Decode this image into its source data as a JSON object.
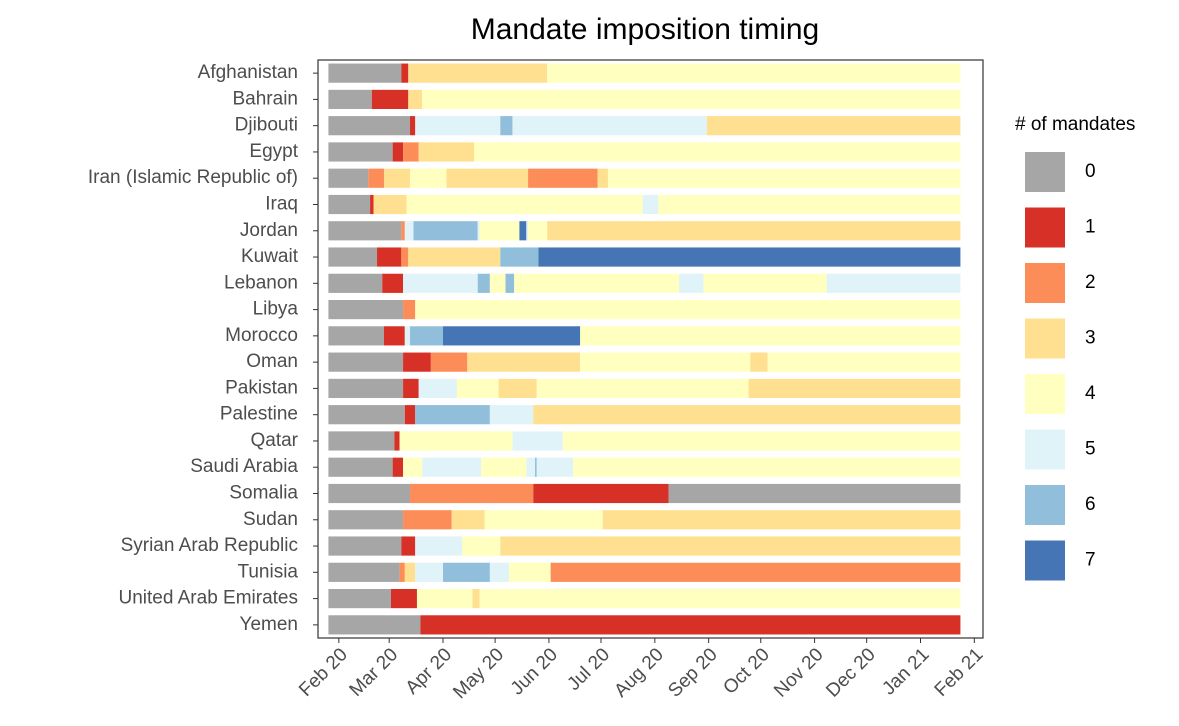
{
  "chart_data": {
    "type": "timeline",
    "title": "Mandate imposition timing",
    "xlim": [
      -12,
      371
    ],
    "xticks": [
      {
        "value": 0,
        "label": "Feb 20"
      },
      {
        "value": 29,
        "label": "Mar 20"
      },
      {
        "value": 60,
        "label": "Apr 20"
      },
      {
        "value": 90,
        "label": "May 20"
      },
      {
        "value": 121,
        "label": "Jun 20"
      },
      {
        "value": 151,
        "label": "Jul 20"
      },
      {
        "value": 182,
        "label": "Aug 20"
      },
      {
        "value": 213,
        "label": "Sep 20"
      },
      {
        "value": 243,
        "label": "Oct 20"
      },
      {
        "value": 274,
        "label": "Nov 20"
      },
      {
        "value": 304,
        "label": "Dec 20"
      },
      {
        "value": 335,
        "label": "Jan 21"
      },
      {
        "value": 366,
        "label": "Feb 21"
      }
    ],
    "legend": {
      "title": "# of mandates",
      "levels": [
        0,
        1,
        2,
        3,
        4,
        5,
        6,
        7
      ],
      "colors": [
        "#a6a6a6",
        "#d73027",
        "#fc8d59",
        "#fee090",
        "#ffffbf",
        "#e0f3f8",
        "#91bfdb",
        "#4575b4"
      ]
    },
    "rows": [
      {
        "name": "Afghanistan",
        "segments": [
          [
            -6,
            36,
            0
          ],
          [
            36,
            40,
            1
          ],
          [
            40,
            120,
            3
          ],
          [
            120,
            358,
            4
          ]
        ]
      },
      {
        "name": "Bahrain",
        "segments": [
          [
            -6,
            19,
            0
          ],
          [
            19,
            40,
            1
          ],
          [
            40,
            48,
            3
          ],
          [
            48,
            358,
            4
          ]
        ]
      },
      {
        "name": "Djibouti",
        "segments": [
          [
            -6,
            41,
            0
          ],
          [
            41,
            44,
            1
          ],
          [
            44,
            93,
            5
          ],
          [
            93,
            100,
            6
          ],
          [
            100,
            212,
            5
          ],
          [
            212,
            358,
            3
          ]
        ]
      },
      {
        "name": "Egypt",
        "segments": [
          [
            -6,
            31,
            0
          ],
          [
            31,
            37,
            1
          ],
          [
            37,
            46,
            2
          ],
          [
            46,
            78,
            3
          ],
          [
            78,
            358,
            4
          ]
        ]
      },
      {
        "name": "Iran (Islamic Republic of)",
        "segments": [
          [
            -6,
            17,
            0
          ],
          [
            17,
            26,
            2
          ],
          [
            26,
            41,
            3
          ],
          [
            41,
            62,
            4
          ],
          [
            62,
            109,
            3
          ],
          [
            109,
            149,
            2
          ],
          [
            149,
            155,
            3
          ],
          [
            155,
            358,
            4
          ]
        ]
      },
      {
        "name": "Iraq",
        "segments": [
          [
            -6,
            18,
            0
          ],
          [
            18,
            20,
            1
          ],
          [
            20,
            39,
            3
          ],
          [
            39,
            175,
            4
          ],
          [
            175,
            184,
            5
          ],
          [
            184,
            358,
            4
          ]
        ]
      },
      {
        "name": "Jordan",
        "segments": [
          [
            -6,
            36,
            0
          ],
          [
            36,
            38,
            2
          ],
          [
            38,
            43,
            5
          ],
          [
            43,
            80,
            6
          ],
          [
            80,
            81,
            5
          ],
          [
            81,
            104,
            4
          ],
          [
            104,
            108,
            7
          ],
          [
            108,
            109,
            5
          ],
          [
            109,
            120,
            4
          ],
          [
            120,
            358,
            3
          ]
        ]
      },
      {
        "name": "Kuwait",
        "segments": [
          [
            -6,
            22,
            0
          ],
          [
            22,
            36,
            1
          ],
          [
            36,
            40,
            2
          ],
          [
            40,
            93,
            3
          ],
          [
            93,
            115,
            6
          ],
          [
            115,
            358,
            7
          ]
        ]
      },
      {
        "name": "Lebanon",
        "segments": [
          [
            -6,
            25,
            0
          ],
          [
            25,
            37,
            1
          ],
          [
            37,
            80,
            5
          ],
          [
            80,
            87,
            6
          ],
          [
            87,
            96,
            4
          ],
          [
            96,
            101,
            6
          ],
          [
            101,
            196,
            4
          ],
          [
            196,
            210,
            5
          ],
          [
            210,
            281,
            4
          ],
          [
            281,
            358,
            5
          ]
        ]
      },
      {
        "name": "Libya",
        "segments": [
          [
            -6,
            37,
            0
          ],
          [
            37,
            44,
            2
          ],
          [
            44,
            358,
            4
          ]
        ]
      },
      {
        "name": "Morocco",
        "segments": [
          [
            -6,
            26,
            0
          ],
          [
            26,
            38,
            1
          ],
          [
            38,
            41,
            5
          ],
          [
            41,
            60,
            6
          ],
          [
            60,
            139,
            7
          ],
          [
            139,
            358,
            4
          ]
        ]
      },
      {
        "name": "Oman",
        "segments": [
          [
            -6,
            37,
            0
          ],
          [
            37,
            53,
            1
          ],
          [
            53,
            74,
            2
          ],
          [
            74,
            139,
            3
          ],
          [
            139,
            237,
            4
          ],
          [
            237,
            247,
            3
          ],
          [
            247,
            358,
            4
          ]
        ]
      },
      {
        "name": "Pakistan",
        "segments": [
          [
            -6,
            37,
            0
          ],
          [
            37,
            46,
            1
          ],
          [
            46,
            68,
            5
          ],
          [
            68,
            92,
            4
          ],
          [
            92,
            114,
            3
          ],
          [
            114,
            236,
            4
          ],
          [
            236,
            358,
            3
          ]
        ]
      },
      {
        "name": "Palestine",
        "segments": [
          [
            -6,
            38,
            0
          ],
          [
            38,
            44,
            1
          ],
          [
            44,
            87,
            6
          ],
          [
            87,
            112,
            5
          ],
          [
            112,
            358,
            3
          ]
        ]
      },
      {
        "name": "Qatar",
        "segments": [
          [
            -6,
            32,
            0
          ],
          [
            32,
            35,
            1
          ],
          [
            35,
            100,
            4
          ],
          [
            100,
            129,
            5
          ],
          [
            129,
            358,
            4
          ]
        ]
      },
      {
        "name": "Saudi Arabia",
        "segments": [
          [
            -6,
            31,
            0
          ],
          [
            31,
            37,
            1
          ],
          [
            37,
            48,
            4
          ],
          [
            48,
            82,
            5
          ],
          [
            82,
            108,
            4
          ],
          [
            108,
            113,
            5
          ],
          [
            113,
            114,
            6
          ],
          [
            114,
            135,
            5
          ],
          [
            135,
            358,
            4
          ]
        ]
      },
      {
        "name": "Somalia",
        "segments": [
          [
            -6,
            41,
            0
          ],
          [
            41,
            112,
            2
          ],
          [
            112,
            190,
            1
          ],
          [
            190,
            358,
            0
          ]
        ]
      },
      {
        "name": "Sudan",
        "segments": [
          [
            -6,
            37,
            0
          ],
          [
            37,
            65,
            2
          ],
          [
            65,
            84,
            3
          ],
          [
            84,
            152,
            4
          ],
          [
            152,
            358,
            3
          ]
        ]
      },
      {
        "name": "Syrian Arab Republic",
        "segments": [
          [
            -6,
            36,
            0
          ],
          [
            36,
            44,
            1
          ],
          [
            44,
            71,
            5
          ],
          [
            71,
            93,
            4
          ],
          [
            93,
            358,
            3
          ]
        ]
      },
      {
        "name": "Tunisia",
        "segments": [
          [
            -6,
            35,
            0
          ],
          [
            35,
            38,
            2
          ],
          [
            38,
            44,
            3
          ],
          [
            44,
            60,
            5
          ],
          [
            60,
            87,
            6
          ],
          [
            87,
            98,
            5
          ],
          [
            98,
            122,
            4
          ],
          [
            122,
            358,
            2
          ]
        ]
      },
      {
        "name": "United Arab Emirates",
        "segments": [
          [
            -6,
            30,
            0
          ],
          [
            30,
            45,
            1
          ],
          [
            45,
            77,
            4
          ],
          [
            77,
            81,
            3
          ],
          [
            81,
            358,
            4
          ]
        ]
      },
      {
        "name": "Yemen",
        "segments": [
          [
            -6,
            47,
            0
          ],
          [
            47,
            358,
            1
          ]
        ]
      }
    ]
  }
}
